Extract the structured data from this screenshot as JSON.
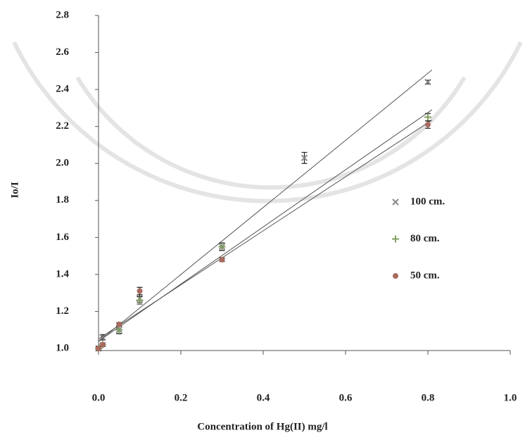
{
  "chart_data": {
    "type": "scatter",
    "x_label": "Concentration of Hg(II) mg/l",
    "y_label": "Io/I",
    "xlim": [
      0,
      1.0
    ],
    "ylim": [
      1.0,
      2.8
    ],
    "xticks": [
      {
        "value": 0,
        "label": "0.0"
      },
      0.2,
      0.4,
      0.6,
      0.8,
      {
        "value": 1.0,
        "label": "1.0"
      }
    ],
    "yticks": [
      {
        "value": 1.0,
        "label": "1.0"
      },
      1.2,
      1.4,
      1.6,
      1.8,
      {
        "value": 2.0,
        "label": "2.0"
      },
      2.2,
      2.4,
      2.6,
      2.8
    ],
    "trendline": true,
    "series": [
      {
        "name": "100 cm.",
        "color": "#8a8a8a",
        "marker": "x",
        "x": [
          0,
          0.01,
          0.05,
          0.1,
          0.3,
          0.5,
          0.8
        ],
        "values": [
          1.0,
          1.06,
          1.1,
          1.27,
          1.55,
          2.03,
          2.44
        ],
        "errors": [
          0.01,
          0.015,
          0.02,
          0.02,
          0.02,
          0.03,
          0.01
        ]
      },
      {
        "name": "80 cm.",
        "color": "#7f9f5f",
        "marker": "plus",
        "x": [
          0,
          0.01,
          0.05,
          0.1,
          0.3,
          0.8
        ],
        "values": [
          1.0,
          1.02,
          1.1,
          1.26,
          1.55,
          2.25
        ],
        "errors": [
          0.01,
          0.01,
          0.02,
          0.02,
          0.02,
          0.02
        ]
      },
      {
        "name": "50 cm.",
        "color": "#a86b5e",
        "marker": "circle",
        "x": [
          0,
          0.01,
          0.05,
          0.1,
          0.3,
          0.8
        ],
        "values": [
          1.0,
          1.02,
          1.13,
          1.31,
          1.48,
          2.21
        ],
        "errors": [
          0.01,
          0.01,
          0.01,
          0.02,
          0.01,
          0.02
        ]
      }
    ]
  }
}
